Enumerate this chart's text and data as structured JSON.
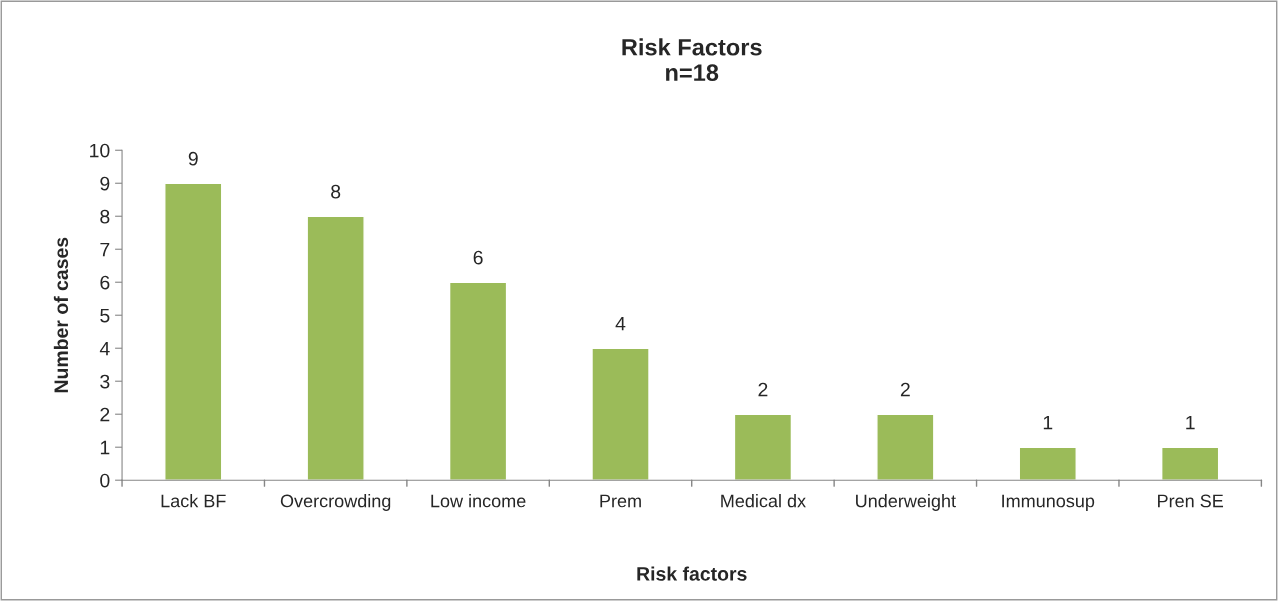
{
  "chart_data": {
    "type": "bar",
    "title": "Risk Factors\nn=18",
    "xlabel": "Risk factors",
    "ylabel": "Number of cases",
    "categories": [
      "Lack BF",
      "Overcrowding",
      "Low income",
      "Prem",
      "Medical dx",
      "Underweight",
      "Immunosup",
      "Pren SE"
    ],
    "values": [
      9,
      8,
      6,
      4,
      2,
      2,
      1,
      1
    ],
    "color": "#9bbb59",
    "ylim": [
      0,
      10
    ],
    "yticks": [
      0,
      1,
      2,
      3,
      4,
      5,
      6,
      7,
      8,
      9,
      10
    ],
    "data_labels": true,
    "grid": false,
    "legend": false
  }
}
